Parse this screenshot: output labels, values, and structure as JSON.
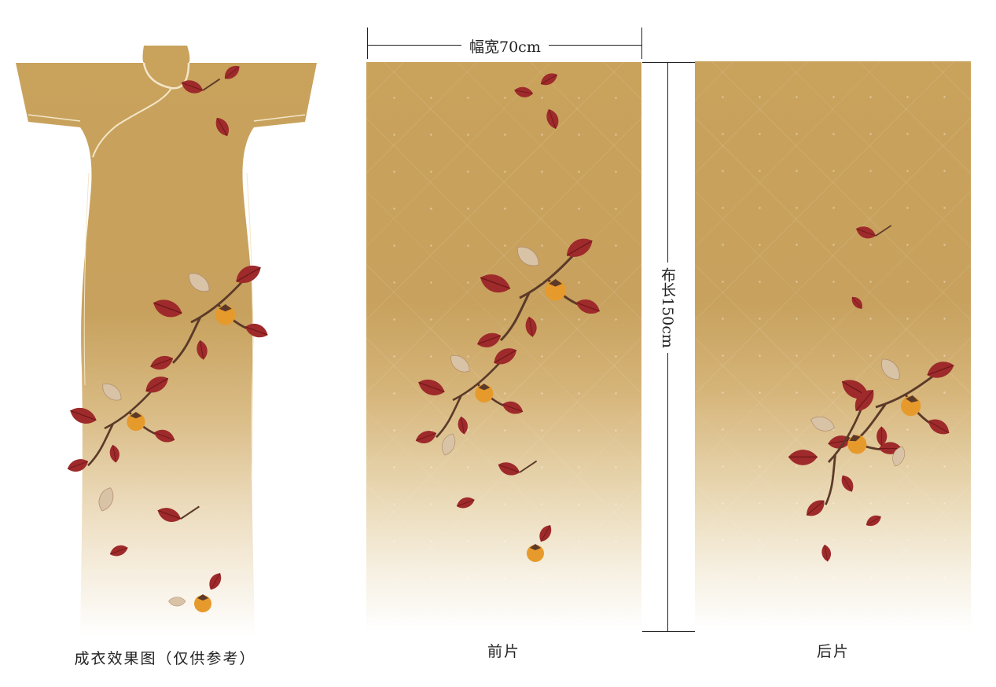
{
  "dimensions": {
    "width_label": "幅宽70cm",
    "length_label": "布长150cm"
  },
  "labels": {
    "garment_caption": "成衣效果图（仅供参考）",
    "front_panel": "前片",
    "back_panel": "后片"
  },
  "colors": {
    "fabric_base": "#c9a25c",
    "fabric_fade": "#ffffff",
    "persimmon_leaf": "#9e2a2b",
    "persimmon_fruit": "#e79a2c",
    "branch": "#5b3a29"
  },
  "motif": "persimmon-branch"
}
